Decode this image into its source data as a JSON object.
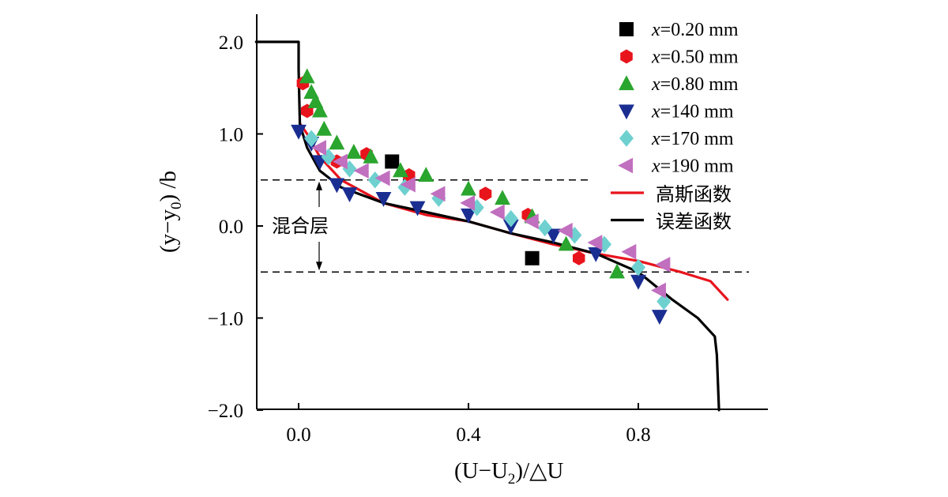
{
  "chart_data": {
    "type": "scatter",
    "xlabel": "(U−U2)/△U",
    "xlabel_parts": {
      "pre": "(U−U",
      "sub": "2",
      "post": ")/△U"
    },
    "ylabel": "(y−y0) /b",
    "ylabel_parts": {
      "pre": "(y−y",
      "sub": "0",
      "post": ") /b"
    },
    "xlim": [
      -0.1,
      1.1
    ],
    "ylim": [
      -2.0,
      2.0
    ],
    "x_ticks": [
      "0.0",
      "0.4",
      "0.8"
    ],
    "x_tick_values": [
      0.0,
      0.4,
      0.8
    ],
    "y_ticks": [
      "2.0",
      "1.0",
      "0.0",
      "−1.0",
      "−2.0"
    ],
    "y_tick_values": [
      2.0,
      1.0,
      0.0,
      -1.0,
      -2.0
    ],
    "grid": false,
    "legend_position": "top-right",
    "annotation": {
      "text": "混合层",
      "y_top": 0.5,
      "y_bottom": -0.5
    },
    "series": [
      {
        "name": "x=0.20 mm",
        "prefix": "x",
        "value": "=0.20 mm",
        "marker": "square",
        "color": "#000000",
        "points": [
          [
            0.22,
            0.7
          ],
          [
            0.55,
            -0.35
          ]
        ]
      },
      {
        "name": "x=0.50 mm",
        "prefix": "x",
        "value": "=0.50 mm",
        "marker": "hexagon",
        "color": "#e8141c",
        "points": [
          [
            0.01,
            1.55
          ],
          [
            0.02,
            1.25
          ],
          [
            0.09,
            0.7
          ],
          [
            0.16,
            0.78
          ],
          [
            0.26,
            0.55
          ],
          [
            0.44,
            0.35
          ],
          [
            0.54,
            0.12
          ],
          [
            0.66,
            -0.35
          ]
        ]
      },
      {
        "name": "x=0.80 mm",
        "prefix": "x",
        "value": "=0.80 mm",
        "marker": "triangle-up",
        "color": "#2aa52e",
        "points": [
          [
            0.02,
            1.62
          ],
          [
            0.03,
            1.45
          ],
          [
            0.04,
            1.35
          ],
          [
            0.05,
            1.25
          ],
          [
            0.06,
            1.05
          ],
          [
            0.09,
            0.9
          ],
          [
            0.13,
            0.8
          ],
          [
            0.17,
            0.75
          ],
          [
            0.24,
            0.6
          ],
          [
            0.3,
            0.55
          ],
          [
            0.4,
            0.4
          ],
          [
            0.48,
            0.3
          ],
          [
            0.55,
            0.1
          ],
          [
            0.63,
            -0.2
          ],
          [
            0.75,
            -0.5
          ]
        ]
      },
      {
        "name": "x=140 mm",
        "prefix": "x",
        "value": "=140 mm",
        "marker": "triangle-down",
        "color": "#1a2e92",
        "points": [
          [
            0.0,
            1.03
          ],
          [
            0.03,
            0.9
          ],
          [
            0.05,
            0.7
          ],
          [
            0.09,
            0.45
          ],
          [
            0.12,
            0.35
          ],
          [
            0.2,
            0.3
          ],
          [
            0.28,
            0.2
          ],
          [
            0.4,
            0.12
          ],
          [
            0.5,
            0.0
          ],
          [
            0.6,
            -0.1
          ],
          [
            0.7,
            -0.3
          ],
          [
            0.8,
            -0.6
          ],
          [
            0.85,
            -0.98
          ]
        ]
      },
      {
        "name": "x=170 mm",
        "prefix": "x",
        "value": "=170 mm",
        "marker": "diamond",
        "color": "#6fd0d0",
        "points": [
          [
            0.03,
            0.95
          ],
          [
            0.07,
            0.75
          ],
          [
            0.12,
            0.62
          ],
          [
            0.18,
            0.5
          ],
          [
            0.25,
            0.42
          ],
          [
            0.33,
            0.3
          ],
          [
            0.42,
            0.2
          ],
          [
            0.5,
            0.08
          ],
          [
            0.58,
            -0.02
          ],
          [
            0.65,
            -0.1
          ],
          [
            0.72,
            -0.2
          ],
          [
            0.8,
            -0.45
          ],
          [
            0.86,
            -0.82
          ]
        ]
      },
      {
        "name": "x=190 mm",
        "prefix": "x",
        "value": "=190 mm",
        "marker": "triangle-left",
        "color": "#c16fbf",
        "points": [
          [
            0.05,
            0.85
          ],
          [
            0.1,
            0.7
          ],
          [
            0.15,
            0.6
          ],
          [
            0.2,
            0.52
          ],
          [
            0.26,
            0.45
          ],
          [
            0.33,
            0.35
          ],
          [
            0.4,
            0.25
          ],
          [
            0.47,
            0.15
          ],
          [
            0.55,
            0.05
          ],
          [
            0.63,
            -0.05
          ],
          [
            0.7,
            -0.18
          ],
          [
            0.78,
            -0.28
          ],
          [
            0.86,
            -0.42
          ],
          [
            0.85,
            -0.7
          ]
        ]
      },
      {
        "name": "高斯函数",
        "marker": "line",
        "color": "#e8141c",
        "points": [
          [
            0.005,
            1.1
          ],
          [
            0.02,
            1.0
          ],
          [
            0.05,
            0.75
          ],
          [
            0.1,
            0.5
          ],
          [
            0.2,
            0.25
          ],
          [
            0.3,
            0.12
          ],
          [
            0.4,
            0.05
          ],
          [
            0.5,
            -0.08
          ],
          [
            0.6,
            -0.2
          ],
          [
            0.7,
            -0.3
          ],
          [
            0.8,
            -0.38
          ],
          [
            0.9,
            -0.5
          ],
          [
            0.97,
            -0.6
          ],
          [
            1.01,
            -0.8
          ]
        ]
      },
      {
        "name": "误差函数",
        "marker": "line",
        "color": "#000000",
        "points": [
          [
            -0.1,
            2.0
          ],
          [
            0.0,
            2.0
          ],
          [
            0.0,
            1.7
          ],
          [
            0.003,
            1.1
          ],
          [
            0.02,
            0.85
          ],
          [
            0.05,
            0.6
          ],
          [
            0.1,
            0.42
          ],
          [
            0.2,
            0.25
          ],
          [
            0.3,
            0.15
          ],
          [
            0.4,
            0.05
          ],
          [
            0.5,
            -0.08
          ],
          [
            0.6,
            -0.18
          ],
          [
            0.7,
            -0.3
          ],
          [
            0.8,
            -0.5
          ],
          [
            0.88,
            -0.8
          ],
          [
            0.94,
            -1.0
          ],
          [
            0.98,
            -1.2
          ],
          [
            0.985,
            -1.4
          ],
          [
            0.99,
            -2.0
          ]
        ]
      }
    ]
  }
}
